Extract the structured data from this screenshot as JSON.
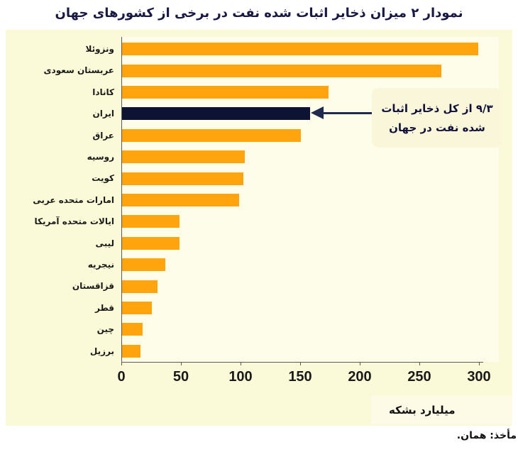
{
  "title": "نمودار ۲ میزان ذخایر اثبات شده نفت در برخی از کشورهای جهان",
  "source_note": "مأخذ: همان.",
  "chart_data": {
    "type": "bar",
    "orientation": "horizontal",
    "title": "نمودار ۲ میزان ذخایر اثبات شده نفت در برخی از کشورهای جهان",
    "xlabel": "میلیارد بشکه",
    "categories": [
      "ونزوئلا",
      "عربستان سعودی",
      "کانادا",
      "ایران",
      "عراق",
      "روسیه",
      "کویت",
      "امارات متحده عربی",
      "ایالات متحده آمریکا",
      "لیبی",
      "نیجریه",
      "قزاقستان",
      "قطر",
      "چین",
      "برزیل"
    ],
    "values": [
      299,
      268,
      173,
      158,
      150,
      103,
      101.5,
      98,
      48.5,
      48.4,
      36.5,
      30,
      25,
      17.5,
      15.5
    ],
    "xticks": [
      0,
      50,
      100,
      150,
      200,
      250,
      300
    ],
    "xlim": [
      0,
      300
    ],
    "grid": false,
    "bar_color": "#FFA40D",
    "highlight_color": "#0C1333",
    "highlight_category": "ایران",
    "annotation": {
      "line1": "۹/۳ از کل ذخایر اثبات",
      "line2": "شده نفت در جهان",
      "target": "ایران",
      "arrow_color": "#1E2A4E"
    }
  }
}
